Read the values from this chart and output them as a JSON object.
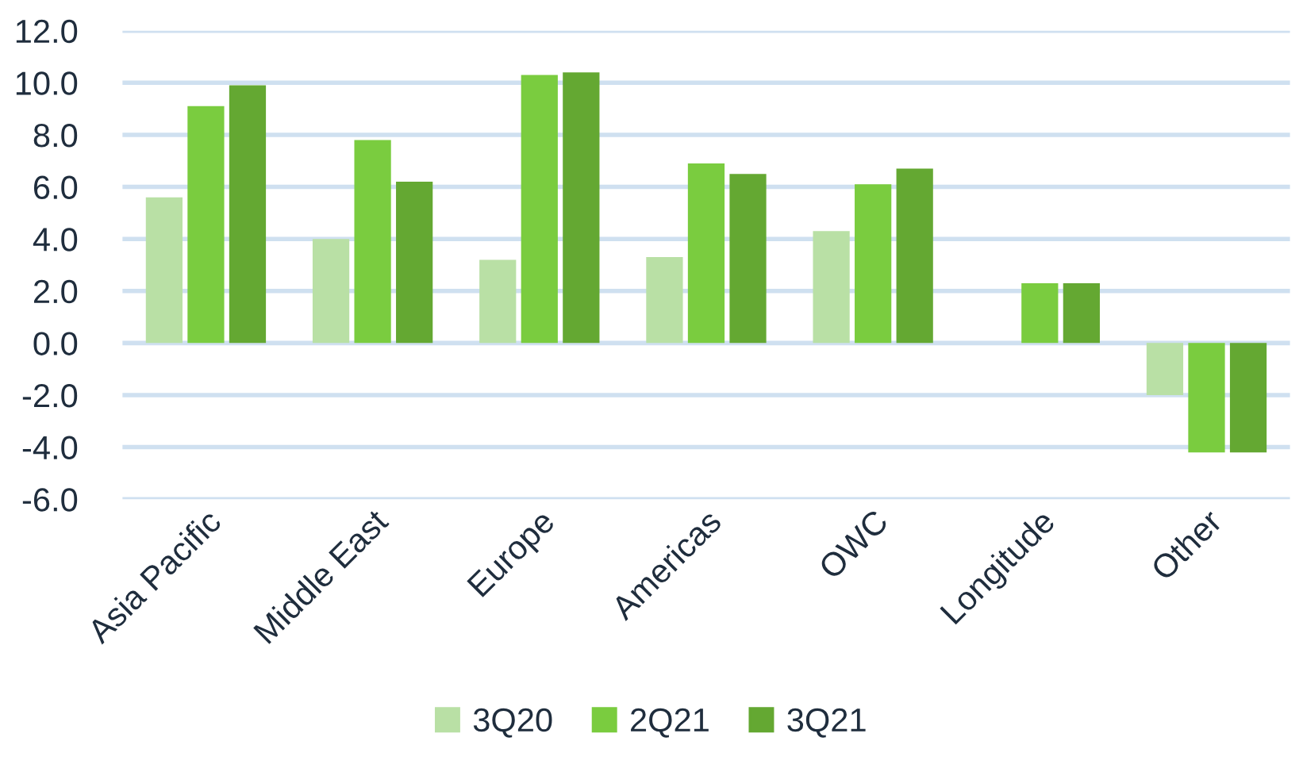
{
  "chart_data": {
    "type": "bar",
    "categories": [
      "Asia Pacific",
      "Middle East",
      "Europe",
      "Americas",
      "OWC",
      "Longitude",
      "Other"
    ],
    "series": [
      {
        "name": "3Q20",
        "color": "#b9e0a5",
        "values": [
          5.6,
          4.0,
          3.2,
          3.3,
          4.3,
          null,
          -2.0
        ]
      },
      {
        "name": "2Q21",
        "color": "#7acc3f",
        "values": [
          9.1,
          7.8,
          10.3,
          6.9,
          6.1,
          2.3,
          -4.2
        ]
      },
      {
        "name": "3Q21",
        "color": "#64a832",
        "values": [
          9.9,
          6.2,
          10.4,
          6.5,
          6.7,
          2.3,
          -4.2
        ]
      }
    ],
    "ylim": [
      -6.0,
      12.0
    ],
    "yticks": [
      {
        "value": -6,
        "label": "-6.0"
      },
      {
        "value": -4,
        "label": "-4.0"
      },
      {
        "value": -2,
        "label": "-2.0"
      },
      {
        "value": 0,
        "label": "0.0"
      },
      {
        "value": 2,
        "label": "2.0"
      },
      {
        "value": 4,
        "label": "4.0"
      },
      {
        "value": 6,
        "label": "6.0"
      },
      {
        "value": 8,
        "label": "8.0"
      },
      {
        "value": 10,
        "label": "10.0"
      },
      {
        "value": 12,
        "label": "12.0"
      }
    ],
    "grid": "y",
    "legend": "bottom"
  }
}
